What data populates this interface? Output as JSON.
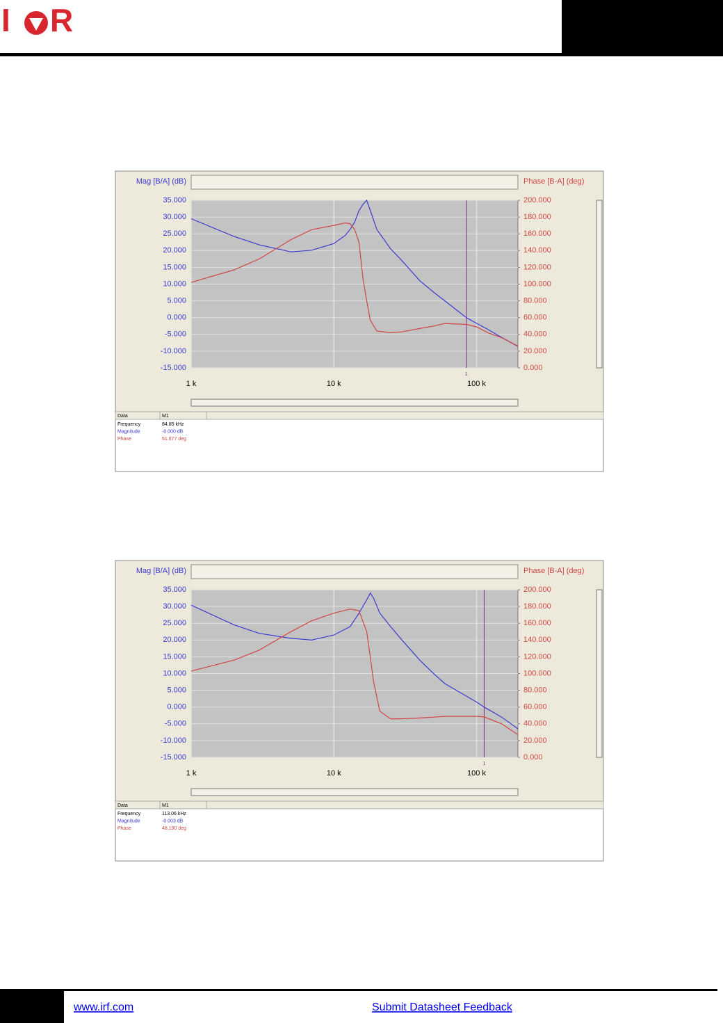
{
  "header": {
    "logo_left": "I",
    "logo_right": "R"
  },
  "chart_data": [
    {
      "type": "line",
      "xlabel_left": "Mag [B/A] (dB)",
      "ylabel": "Mag [B/A] (dB)",
      "y2label": "Phase [B-A] (deg)",
      "log_x": true,
      "grid": true,
      "xlim": [
        1000,
        195000
      ],
      "xticks": [
        {
          "value": 1000,
          "label": "1 k"
        },
        {
          "value": 10000,
          "label": "10 k"
        },
        {
          "value": 100000,
          "label": "100 k"
        }
      ],
      "ylim": [
        -15,
        35
      ],
      "yticks": [
        {
          "value": -15,
          "label": "-15.000"
        },
        {
          "value": -10,
          "label": "-10.000"
        },
        {
          "value": -5,
          "label": "-5.000"
        },
        {
          "value": 0,
          "label": "0.000"
        },
        {
          "value": 5,
          "label": "5.000"
        },
        {
          "value": 10,
          "label": "10.000"
        },
        {
          "value": 15,
          "label": "15.000"
        },
        {
          "value": 20,
          "label": "20.000"
        },
        {
          "value": 25,
          "label": "25.000"
        },
        {
          "value": 30,
          "label": "30.000"
        },
        {
          "value": 35,
          "label": "35.000"
        }
      ],
      "y2lim": [
        0,
        200
      ],
      "y2ticks": [
        {
          "value": 0,
          "label": "0.000"
        },
        {
          "value": 20,
          "label": "20.000"
        },
        {
          "value": 40,
          "label": "40.000"
        },
        {
          "value": 60,
          "label": "60.000"
        },
        {
          "value": 80,
          "label": "80.000"
        },
        {
          "value": 100,
          "label": "100.000"
        },
        {
          "value": 120,
          "label": "120.000"
        },
        {
          "value": 140,
          "label": "140.000"
        },
        {
          "value": 160,
          "label": "160.000"
        },
        {
          "value": 180,
          "label": "180.000"
        },
        {
          "value": 200,
          "label": "200.000"
        }
      ],
      "x": [
        1000,
        2000,
        3000,
        5000,
        7000,
        10000,
        12000,
        13000,
        14000,
        15000,
        16000,
        17000,
        18000,
        20000,
        25000,
        30000,
        40000,
        50000,
        60000,
        84850,
        100000,
        120000,
        150000,
        195000
      ],
      "series": [
        {
          "name": "Magnitude",
          "color": "#3a3ad0",
          "values": [
            29.5,
            24.2,
            21.7,
            19.6,
            20.1,
            22.1,
            24.5,
            26.3,
            28.5,
            31.9,
            33.8,
            35,
            32,
            26.3,
            20.5,
            17,
            11,
            7.6,
            5,
            0,
            -1.7,
            -3.5,
            -5.9,
            -8.6
          ]
        },
        {
          "name": "Phase",
          "color": "#d04545",
          "axis": "y2",
          "values": [
            102,
            117,
            130,
            153,
            165,
            170,
            173,
            172,
            165,
            150,
            107,
            80,
            57,
            44,
            42,
            43,
            47,
            50,
            53,
            51.877,
            49,
            42,
            36,
            26
          ]
        }
      ],
      "marker": {
        "x": 84850,
        "label": "1"
      },
      "table": {
        "header": [
          "Data",
          "M1"
        ],
        "rows": [
          [
            "Frequency",
            "84.85 kHz"
          ],
          [
            "Magnitude",
            "-0.000 dB"
          ],
          [
            "Phase",
            "51.877 deg"
          ]
        ]
      }
    },
    {
      "type": "line",
      "xlabel_left": "Mag [B/A] (dB)",
      "ylabel": "Mag [B/A] (dB)",
      "y2label": "Phase [B-A] (deg)",
      "log_x": true,
      "grid": true,
      "xlim": [
        1000,
        195000
      ],
      "xticks": [
        {
          "value": 1000,
          "label": "1 k"
        },
        {
          "value": 10000,
          "label": "10 k"
        },
        {
          "value": 100000,
          "label": "100 k"
        }
      ],
      "ylim": [
        -15,
        35
      ],
      "yticks": [
        {
          "value": -15,
          "label": "-15.000"
        },
        {
          "value": -10,
          "label": "-10.000"
        },
        {
          "value": -5,
          "label": "-5.000"
        },
        {
          "value": 0,
          "label": "0.000"
        },
        {
          "value": 5,
          "label": "5.000"
        },
        {
          "value": 10,
          "label": "10.000"
        },
        {
          "value": 15,
          "label": "15.000"
        },
        {
          "value": 20,
          "label": "20.000"
        },
        {
          "value": 25,
          "label": "25.000"
        },
        {
          "value": 30,
          "label": "30.000"
        },
        {
          "value": 35,
          "label": "35.000"
        }
      ],
      "y2lim": [
        0,
        200
      ],
      "y2ticks": [
        {
          "value": 0,
          "label": "0.000"
        },
        {
          "value": 20,
          "label": "20.000"
        },
        {
          "value": 40,
          "label": "40.000"
        },
        {
          "value": 60,
          "label": "60.000"
        },
        {
          "value": 80,
          "label": "80.000"
        },
        {
          "value": 100,
          "label": "100.000"
        },
        {
          "value": 120,
          "label": "120.000"
        },
        {
          "value": 140,
          "label": "140.000"
        },
        {
          "value": 160,
          "label": "160.000"
        },
        {
          "value": 180,
          "label": "180.000"
        },
        {
          "value": 200,
          "label": "200.000"
        }
      ],
      "x": [
        1000,
        2000,
        3000,
        5000,
        7000,
        10000,
        13000,
        15000,
        17000,
        18000,
        19000,
        21000,
        25000,
        30000,
        40000,
        50000,
        60000,
        100000,
        113060,
        150000,
        195000
      ],
      "series": [
        {
          "name": "Magnitude",
          "color": "#3a3ad0",
          "values": [
            30.4,
            24.5,
            22,
            20.5,
            20,
            21.5,
            24,
            28,
            32,
            34,
            32.5,
            28,
            24,
            20,
            14,
            10,
            7,
            1.5,
            0,
            -3,
            -6.5
          ]
        },
        {
          "name": "Phase",
          "color": "#d04545",
          "axis": "y2",
          "values": [
            103,
            116,
            128,
            150,
            163,
            172,
            177,
            175,
            150,
            120,
            90,
            55,
            46,
            46,
            47,
            48,
            49,
            49,
            48.19,
            40,
            27
          ]
        }
      ],
      "marker": {
        "x": 113060,
        "label": "1"
      },
      "table": {
        "header": [
          "Data",
          "M1"
        ],
        "rows": [
          [
            "Frequency",
            "113.06 kHz"
          ],
          [
            "Magnitude",
            "-0.003 dB"
          ],
          [
            "Phase",
            "48.190 deg"
          ]
        ]
      }
    }
  ],
  "footer": {
    "link": "www.irf.com",
    "feedback": "Submit Datasheet Feedback"
  }
}
